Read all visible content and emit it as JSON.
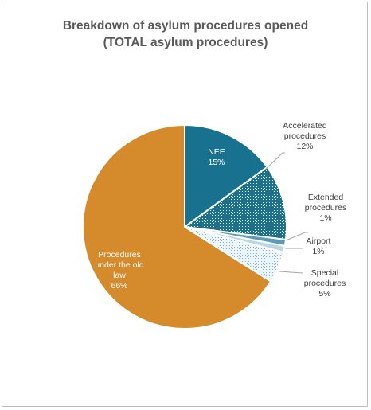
{
  "chart_data": {
    "type": "pie",
    "title_line1": "Breakdown of asylum procedures opened",
    "title_line2": "(TOTAL asylum procedures)",
    "slices": [
      {
        "label_lines": [
          "NEE"
        ],
        "value": 15,
        "value_label": "15%",
        "color": "#17718f",
        "pattern": "solid"
      },
      {
        "label_lines": [
          "Accelerated",
          "procedures"
        ],
        "value": 12,
        "value_label": "12%",
        "color": "#17718f",
        "pattern": "dots"
      },
      {
        "label_lines": [
          "Extended",
          "procedures"
        ],
        "value": 1,
        "value_label": "1%",
        "color": "#5a9bb8",
        "pattern": "solid"
      },
      {
        "label_lines": [
          "Airport"
        ],
        "value": 1,
        "value_label": "1%",
        "color": "#bcd7e4",
        "pattern": "solid"
      },
      {
        "label_lines": [
          "Special",
          "procedures"
        ],
        "value": 5,
        "value_label": "5%",
        "color": "#dce9f0",
        "pattern": "dots"
      },
      {
        "label_lines": [
          "Procedures",
          "under the old",
          "law"
        ],
        "value": 66,
        "value_label": "66%",
        "color": "#d58a2b",
        "pattern": "solid"
      }
    ]
  }
}
